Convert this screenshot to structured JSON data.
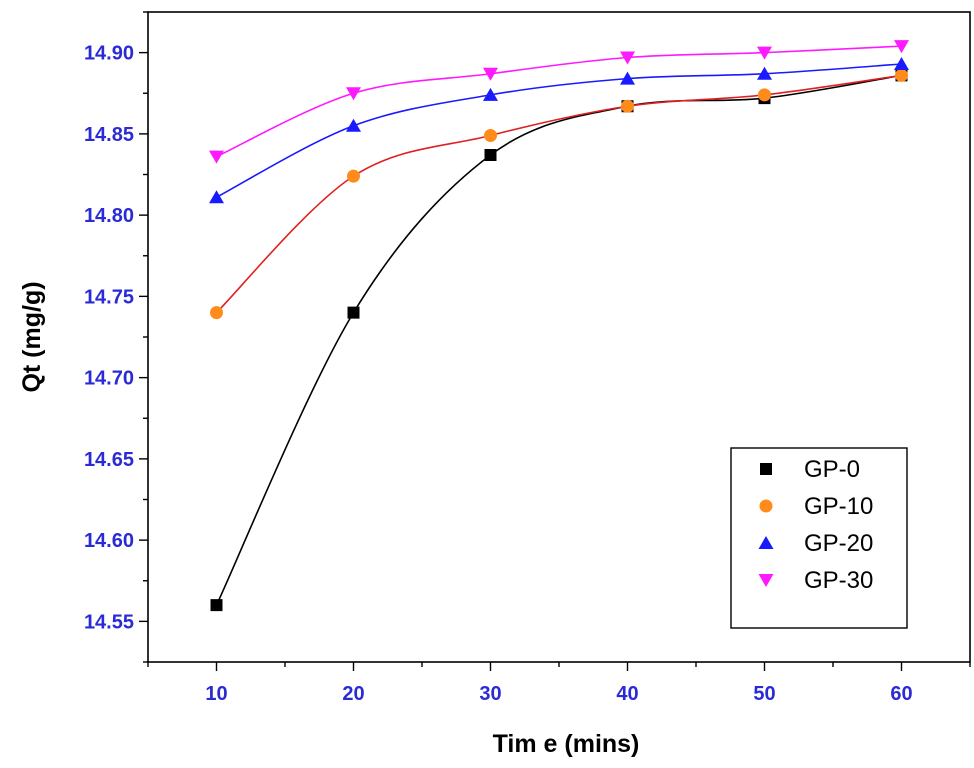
{
  "chart_data": {
    "type": "scatter",
    "xlabel": "Tim e (mins)",
    "ylabel": "Qt (mg/g)",
    "xlim": [
      5,
      65
    ],
    "ylim": [
      14.525,
      14.925
    ],
    "x_ticks": [
      10,
      20,
      30,
      40,
      50,
      60
    ],
    "y_ticks": [
      14.55,
      14.6,
      14.65,
      14.7,
      14.75,
      14.8,
      14.85,
      14.9
    ],
    "x_tick_labels": [
      "10",
      "20",
      "30",
      "40",
      "50",
      "60"
    ],
    "y_tick_labels": [
      "14.55",
      "14.60",
      "14.65",
      "14.70",
      "14.75",
      "14.80",
      "14.85",
      "14.90"
    ],
    "grid": false,
    "legend_position": "bottom-right",
    "x": [
      10,
      20,
      30,
      40,
      50,
      60
    ],
    "series": [
      {
        "name": "GP-0",
        "marker": "square",
        "color": "#000000",
        "fit_color": "#000000",
        "values": [
          14.56,
          14.74,
          14.837,
          14.867,
          14.872,
          14.886
        ]
      },
      {
        "name": "GP-10",
        "marker": "circle",
        "color": "#ff8c1a",
        "fit_color": "#e02020",
        "values": [
          14.74,
          14.824,
          14.849,
          14.867,
          14.874,
          14.886
        ]
      },
      {
        "name": "GP-20",
        "marker": "triangle-up",
        "color": "#1a1aff",
        "fit_color": "#1a1aff",
        "values": [
          14.811,
          14.855,
          14.874,
          14.884,
          14.887,
          14.893
        ]
      },
      {
        "name": "GP-30",
        "marker": "triangle-down",
        "color": "#ff19ff",
        "fit_color": "#ff19ff",
        "values": [
          14.836,
          14.875,
          14.887,
          14.897,
          14.9,
          14.904
        ]
      }
    ]
  }
}
